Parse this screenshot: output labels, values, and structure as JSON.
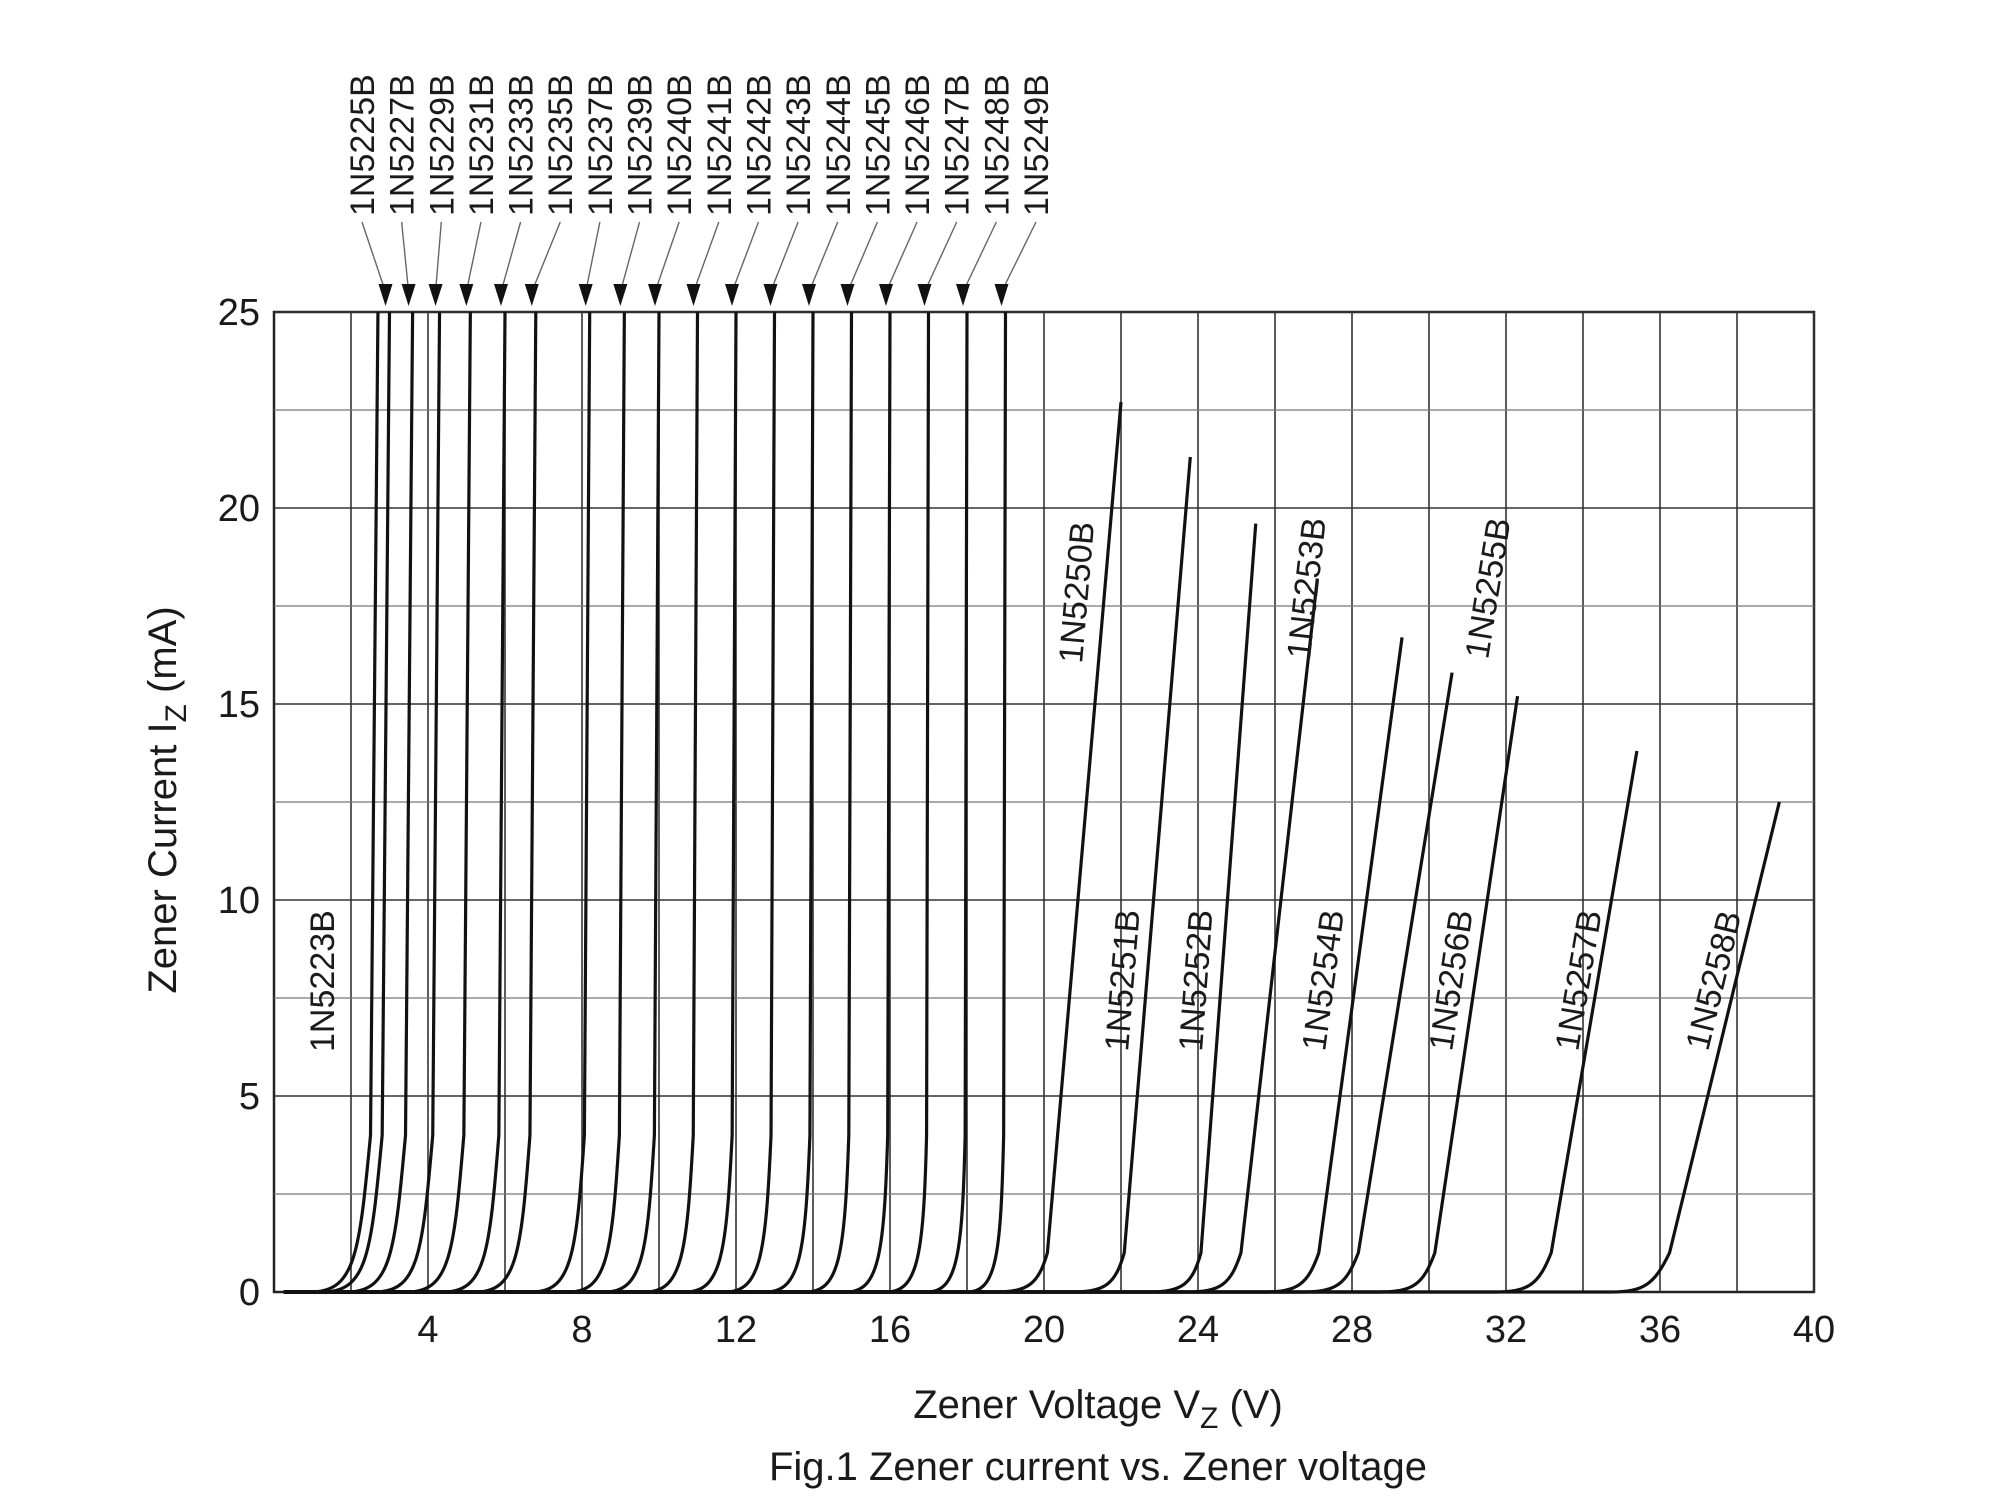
{
  "chart_data": {
    "type": "line",
    "title": "",
    "caption": "Fig.1   Zener current vs. Zener voltage",
    "xlabel": {
      "main": "Zener Voltage   V",
      "sub": "Z",
      "unit": "   (V)"
    },
    "ylabel": {
      "main": "Zener Current   I",
      "sub": "Z",
      "unit": "   (mA)"
    },
    "xlim": [
      0,
      40
    ],
    "ylim": [
      0,
      25
    ],
    "x_ticks": [
      4,
      8,
      12,
      16,
      20,
      24,
      28,
      32,
      36,
      40
    ],
    "y_ticks": [
      0,
      5,
      10,
      15,
      20,
      25
    ],
    "grid": true,
    "grid_x_lines": [
      2,
      4,
      6,
      8,
      10,
      12,
      14,
      16,
      18,
      20,
      22,
      24,
      26,
      28,
      30,
      32,
      34,
      36,
      38,
      40
    ],
    "grid_y_lines": [
      2.5,
      5,
      7.5,
      10,
      12.5,
      15,
      17.5,
      20,
      22.5,
      25
    ],
    "series": [
      {
        "name": "1N5223B",
        "vz": 2.7,
        "end": [
          2.7,
          25
        ]
      },
      {
        "name": "1N5225B",
        "vz": 3.0,
        "end": [
          3.0,
          25
        ]
      },
      {
        "name": "1N5227B",
        "vz": 3.6,
        "end": [
          3.6,
          25
        ]
      },
      {
        "name": "1N5229B",
        "vz": 4.3,
        "end": [
          4.3,
          25
        ]
      },
      {
        "name": "1N5231B",
        "vz": 5.1,
        "end": [
          5.1,
          25
        ]
      },
      {
        "name": "1N5233B",
        "vz": 6.0,
        "end": [
          6.0,
          25
        ]
      },
      {
        "name": "1N5235B",
        "vz": 6.8,
        "end": [
          6.8,
          25
        ]
      },
      {
        "name": "1N5237B",
        "vz": 8.2,
        "end": [
          8.2,
          25
        ]
      },
      {
        "name": "1N5239B",
        "vz": 9.1,
        "end": [
          9.1,
          25
        ]
      },
      {
        "name": "1N5240B",
        "vz": 10.0,
        "end": [
          10.0,
          25
        ]
      },
      {
        "name": "1N5241B",
        "vz": 11.0,
        "end": [
          11.0,
          25
        ]
      },
      {
        "name": "1N5242B",
        "vz": 12.0,
        "end": [
          12.0,
          25
        ]
      },
      {
        "name": "1N5243B",
        "vz": 13.0,
        "end": [
          13.0,
          25
        ]
      },
      {
        "name": "1N5244B",
        "vz": 14.0,
        "end": [
          14.0,
          25
        ]
      },
      {
        "name": "1N5245B",
        "vz": 15.0,
        "end": [
          15.0,
          25
        ]
      },
      {
        "name": "1N5246B",
        "vz": 16.0,
        "end": [
          16.0,
          25
        ]
      },
      {
        "name": "1N5247B",
        "vz": 17.0,
        "end": [
          17.0,
          25
        ]
      },
      {
        "name": "1N5248B",
        "vz": 18.0,
        "end": [
          18.0,
          25
        ]
      },
      {
        "name": "1N5249B",
        "vz": 19.0,
        "end": [
          19.0,
          25
        ]
      },
      {
        "name": "1N5250B",
        "vz": 20.0,
        "end": [
          22.0,
          22.7
        ]
      },
      {
        "name": "1N5251B",
        "vz": 22.0,
        "end": [
          23.8,
          21.3
        ]
      },
      {
        "name": "1N5252B",
        "vz": 24.0,
        "end": [
          25.5,
          19.6
        ]
      },
      {
        "name": "1N5253B",
        "vz": 25.0,
        "end": [
          27.1,
          18.2
        ]
      },
      {
        "name": "1N5254B",
        "vz": 27.0,
        "end": [
          29.3,
          16.7
        ]
      },
      {
        "name": "1N5255B",
        "vz": 28.0,
        "end": [
          30.6,
          15.8
        ]
      },
      {
        "name": "1N5256B",
        "vz": 30.0,
        "end": [
          32.3,
          15.2
        ]
      },
      {
        "name": "1N5257B",
        "vz": 33.0,
        "end": [
          35.4,
          13.8
        ]
      },
      {
        "name": "1N5258B",
        "vz": 36.0,
        "end": [
          39.1,
          12.5
        ]
      }
    ]
  }
}
